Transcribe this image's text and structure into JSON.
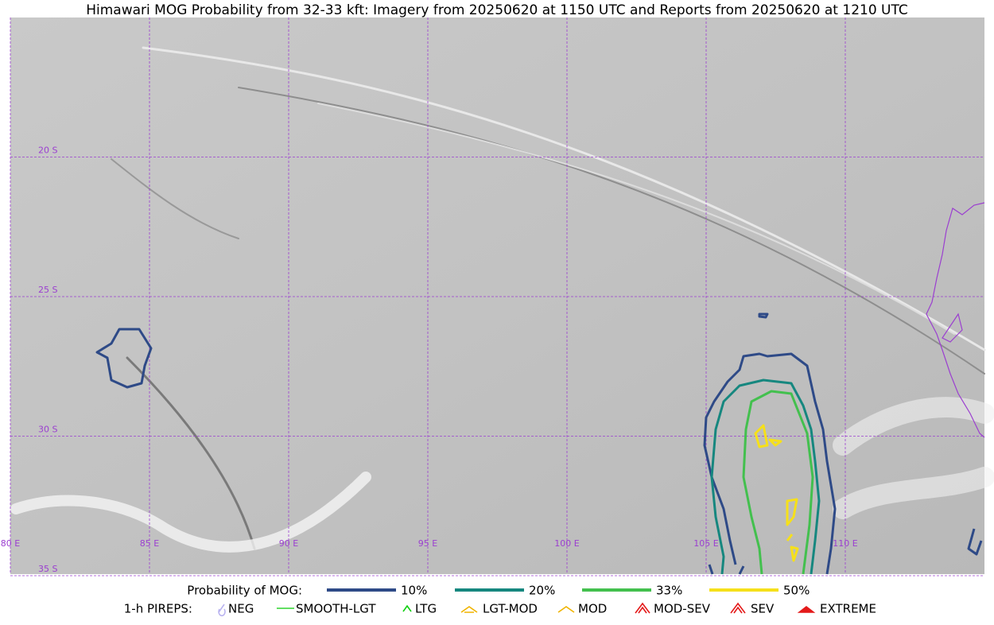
{
  "title": "Himawari MOG Probability from 32-33 kft: Imagery from 20250620 at 1150 UTC and Reports from 20250620 at 1210 UTC",
  "map": {
    "lat_labels": [
      "20 S",
      "25 S",
      "30 S",
      "35 S"
    ],
    "lon_labels": [
      "80 E",
      "85 E",
      "90 E",
      "95 E",
      "100 E",
      "105 E",
      "110 E"
    ]
  },
  "legend": {
    "probability": {
      "label": "Probability of MOG:",
      "levels": [
        {
          "label": "10%",
          "color": "#2e4a87"
        },
        {
          "label": "20%",
          "color": "#16877f"
        },
        {
          "label": "33%",
          "color": "#43c04e"
        },
        {
          "label": "50%",
          "color": "#f6e01a"
        }
      ]
    },
    "pireps": {
      "label": "1-h PIREPS:",
      "items": [
        {
          "label": "NEG",
          "color": "#b9b3f0"
        },
        {
          "label": "SMOOTH-LGT",
          "color": "#2fd42f"
        },
        {
          "label": "LTG",
          "color": "#10d010"
        },
        {
          "label": "LGT-MOD",
          "color": "#f0b400"
        },
        {
          "label": "MOD",
          "color": "#f0b400"
        },
        {
          "label": "MOD-SEV",
          "color": "#e41a1a"
        },
        {
          "label": "SEV",
          "color": "#e41a1a"
        },
        {
          "label": "EXTREME",
          "color": "#e41a1a"
        }
      ]
    }
  }
}
